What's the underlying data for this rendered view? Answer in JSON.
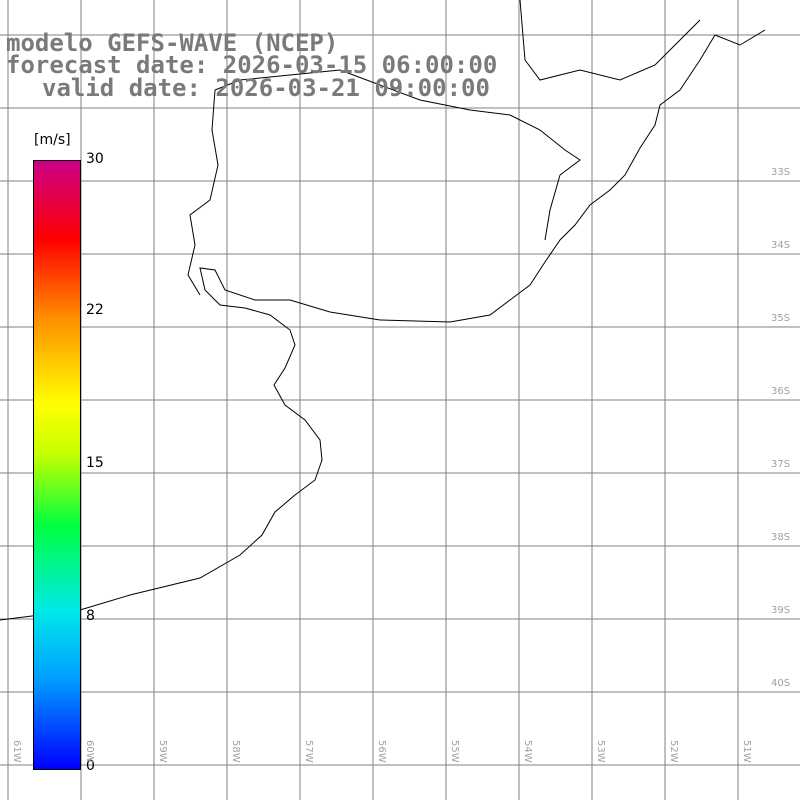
{
  "header": {
    "line1": "modelo GEFS-WAVE (NCEP)",
    "line2": "forecast date: 2026-03-15 06:00:00",
    "line3": "valid date: 2026-03-21 09:00:00"
  },
  "colorbar": {
    "unit": "[m/s]",
    "ticks": [
      "30",
      "22",
      "15",
      "8",
      "0"
    ]
  },
  "lat_labels": [
    "33S",
    "34S",
    "35S",
    "36S",
    "37S",
    "38S",
    "39S",
    "40S"
  ],
  "lon_labels": [
    "61W",
    "60W",
    "59W",
    "58W",
    "57W",
    "56W",
    "55W",
    "54W",
    "53W",
    "52W",
    "51W"
  ],
  "colors": {
    "land": "#ffffff",
    "coast": "#000000",
    "grid": "#808080",
    "arrow": "#ffffff",
    "header_text": "#7a7a7a"
  }
}
